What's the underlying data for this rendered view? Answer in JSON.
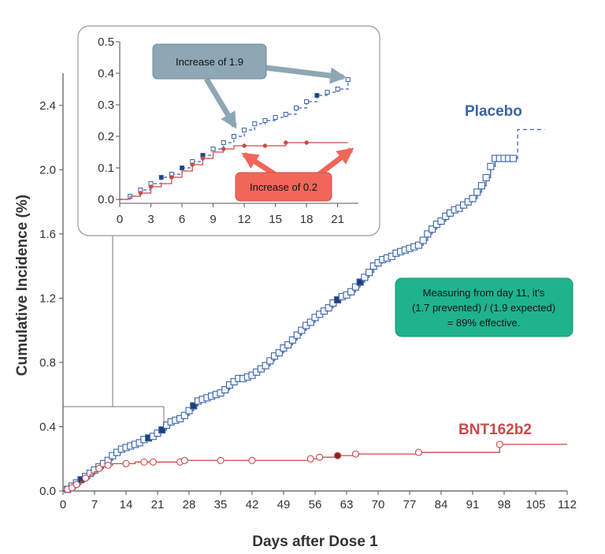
{
  "chart_data": {
    "type": "line",
    "xlabel": "Days after Dose 1",
    "ylabel": "Cumulative Incidence (%)",
    "xlim": [
      0,
      112
    ],
    "ylim": [
      0,
      2.6
    ],
    "xticks": [
      0,
      7,
      14,
      21,
      28,
      35,
      42,
      49,
      56,
      63,
      70,
      77,
      84,
      91,
      98,
      105,
      112
    ],
    "yticks": [
      0.0,
      0.4,
      0.8,
      1.2,
      1.6,
      2.0,
      2.4
    ],
    "xtick_labels": [
      "0",
      "7",
      "14",
      "21",
      "28",
      "35",
      "42",
      "49",
      "56",
      "63",
      "70",
      "77",
      "84",
      "91",
      "98",
      "105",
      "112"
    ],
    "ytick_labels": [
      "0.0",
      "0.4",
      "0.8",
      "1.2",
      "1.6",
      "2.0",
      "2.4"
    ],
    "grid": false,
    "series": [
      {
        "name": "Placebo",
        "color": "#3a62a7",
        "marker": "square",
        "x": [
          1,
          2,
          3,
          4,
          5,
          6,
          7,
          8,
          9,
          10,
          11,
          12,
          13,
          14,
          15,
          16,
          17,
          18,
          19,
          20,
          21,
          22,
          23,
          24,
          25,
          26,
          27,
          28,
          29,
          30,
          31,
          32,
          33,
          34,
          35,
          36,
          37,
          38,
          39,
          40,
          41,
          42,
          43,
          44,
          45,
          46,
          47,
          48,
          49,
          50,
          51,
          52,
          53,
          54,
          55,
          56,
          57,
          58,
          59,
          60,
          61,
          62,
          63,
          64,
          65,
          66,
          67,
          68,
          69,
          70,
          71,
          72,
          73,
          74,
          75,
          76,
          77,
          78,
          79,
          80,
          81,
          82,
          83,
          84,
          85,
          86,
          87,
          88,
          89,
          90,
          91,
          92,
          93,
          94,
          95,
          96,
          97,
          98,
          99,
          100,
          101,
          102,
          103,
          104,
          105,
          106,
          107
        ],
        "y": [
          0.01,
          0.03,
          0.05,
          0.07,
          0.09,
          0.11,
          0.13,
          0.15,
          0.17,
          0.19,
          0.22,
          0.24,
          0.26,
          0.27,
          0.28,
          0.29,
          0.3,
          0.32,
          0.33,
          0.34,
          0.36,
          0.38,
          0.41,
          0.43,
          0.44,
          0.45,
          0.47,
          0.5,
          0.53,
          0.56,
          0.57,
          0.58,
          0.59,
          0.6,
          0.61,
          0.63,
          0.66,
          0.68,
          0.7,
          0.7,
          0.71,
          0.72,
          0.74,
          0.76,
          0.78,
          0.81,
          0.84,
          0.86,
          0.89,
          0.91,
          0.94,
          0.97,
          1.0,
          1.03,
          1.05,
          1.08,
          1.1,
          1.12,
          1.14,
          1.17,
          1.19,
          1.21,
          1.22,
          1.24,
          1.27,
          1.3,
          1.33,
          1.36,
          1.4,
          1.42,
          1.44,
          1.45,
          1.46,
          1.48,
          1.49,
          1.5,
          1.51,
          1.52,
          1.53,
          1.56,
          1.6,
          1.63,
          1.66,
          1.68,
          1.71,
          1.73,
          1.75,
          1.76,
          1.78,
          1.8,
          1.82,
          1.86,
          1.9,
          1.95,
          2.02,
          2.07,
          2.07,
          2.07,
          2.07,
          2.07,
          2.25,
          2.25,
          2.25,
          2.25,
          2.25,
          2.25,
          2.25
        ],
        "filled_x": [
          4,
          19,
          22,
          29,
          61,
          66
        ]
      },
      {
        "name": "BNT162b2",
        "color": "#c94a4a",
        "marker": "circle",
        "x": [
          1,
          2,
          3,
          4,
          5,
          6,
          7,
          8,
          9,
          10,
          11,
          12,
          14,
          16,
          18,
          20,
          22,
          26,
          27,
          35,
          42,
          55,
          57,
          61,
          65,
          79,
          97,
          112
        ],
        "y": [
          0.01,
          0.02,
          0.04,
          0.06,
          0.08,
          0.1,
          0.12,
          0.14,
          0.15,
          0.16,
          0.17,
          0.17,
          0.17,
          0.18,
          0.18,
          0.18,
          0.18,
          0.18,
          0.19,
          0.19,
          0.19,
          0.2,
          0.21,
          0.22,
          0.23,
          0.24,
          0.29,
          0.29
        ],
        "marker_x": [
          1,
          2,
          3,
          5,
          8,
          10,
          14,
          18,
          20,
          26,
          27,
          35,
          42,
          55,
          57,
          61,
          65,
          79,
          97
        ],
        "filled_x": [
          61
        ]
      }
    ],
    "inset": {
      "xlim": [
        0,
        23
      ],
      "ylim": [
        0,
        0.5
      ],
      "xticks": [
        0,
        3,
        6,
        9,
        12,
        15,
        18,
        21
      ],
      "yticks": [
        0.0,
        0.1,
        0.2,
        0.3,
        0.4,
        0.5
      ],
      "xtick_labels": [
        "0",
        "3",
        "6",
        "9",
        "12",
        "15",
        "18",
        "21"
      ],
      "ytick_labels": [
        "0.0",
        "0.1",
        "0.2",
        "0.3",
        "0.4",
        "0.5"
      ],
      "placebo": {
        "x": [
          0,
          1,
          2,
          3,
          4,
          5,
          6,
          7,
          8,
          9,
          10,
          11,
          12,
          13,
          14,
          15,
          16,
          17,
          18,
          19,
          20,
          21,
          22
        ],
        "y": [
          0.0,
          0.01,
          0.03,
          0.05,
          0.07,
          0.08,
          0.1,
          0.12,
          0.14,
          0.16,
          0.18,
          0.2,
          0.22,
          0.24,
          0.25,
          0.26,
          0.27,
          0.29,
          0.31,
          0.33,
          0.34,
          0.35,
          0.38
        ],
        "filled_x": [
          4,
          6,
          8,
          19
        ]
      },
      "vaccine": {
        "x": [
          0,
          1,
          2,
          3,
          4,
          5,
          6,
          7,
          8,
          9,
          10,
          11,
          12,
          14,
          16,
          18,
          22
        ],
        "y": [
          0.0,
          0.01,
          0.02,
          0.04,
          0.05,
          0.07,
          0.09,
          0.11,
          0.13,
          0.15,
          0.16,
          0.17,
          0.17,
          0.17,
          0.18,
          0.18,
          0.18
        ],
        "marker_x": [
          2,
          3,
          5,
          7,
          8,
          10,
          12,
          14,
          16,
          18
        ]
      }
    },
    "annotations": {
      "placebo_increase": "Increase of 1.9",
      "vaccine_increase": "Increase of 0.2",
      "efficacy_lines": [
        "Measuring from day 11, it's",
        "(1.7 prevented) / (1.9 expected)",
        "= 89% effective."
      ]
    }
  },
  "colors": {
    "placebo": "#3a62a7",
    "vaccine": "#c94a4a",
    "callout_gray": "#8ea7b5",
    "callout_red": "#f0675a",
    "callout_teal": "#1fb38d"
  }
}
